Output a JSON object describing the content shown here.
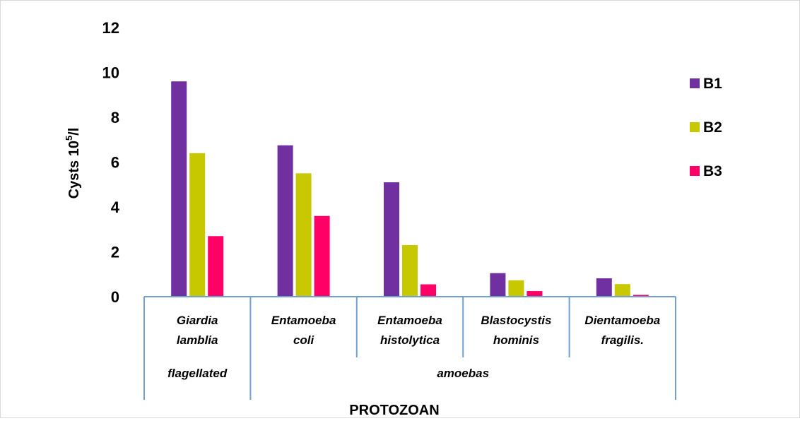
{
  "chart_data": {
    "type": "bar",
    "title": "",
    "xlabel": "PROTOZOAN",
    "ylabel": "Cysts 10",
    "ylabel_sup": "5",
    "ylabel_suffix": "/l",
    "ylim": [
      0,
      12
    ],
    "yticks": [
      "0",
      "2",
      "4",
      "6",
      "8",
      "10",
      "12"
    ],
    "grid": false,
    "legend_position": "right",
    "categories": [
      [
        "Giardia",
        "lamblia"
      ],
      [
        "Entamoeba",
        "coli"
      ],
      [
        "Entamoeba",
        "histolytica"
      ],
      [
        "Blastocystis",
        "hominis"
      ],
      [
        "Dientamoeba",
        "fragilis."
      ]
    ],
    "groups": [
      {
        "label": "flagellated",
        "count": 1
      },
      {
        "label": "amoebas",
        "count": 4
      }
    ],
    "series": [
      {
        "name": "B1",
        "color": "#7030a0",
        "values": [
          9.6,
          6.75,
          5.1,
          1.05,
          0.82
        ]
      },
      {
        "name": "B2",
        "color": "#c8c800",
        "values": [
          6.4,
          5.5,
          2.3,
          0.73,
          0.56
        ]
      },
      {
        "name": "B3",
        "color": "#ff0066",
        "values": [
          2.7,
          3.6,
          0.55,
          0.25,
          0.08
        ]
      }
    ]
  }
}
